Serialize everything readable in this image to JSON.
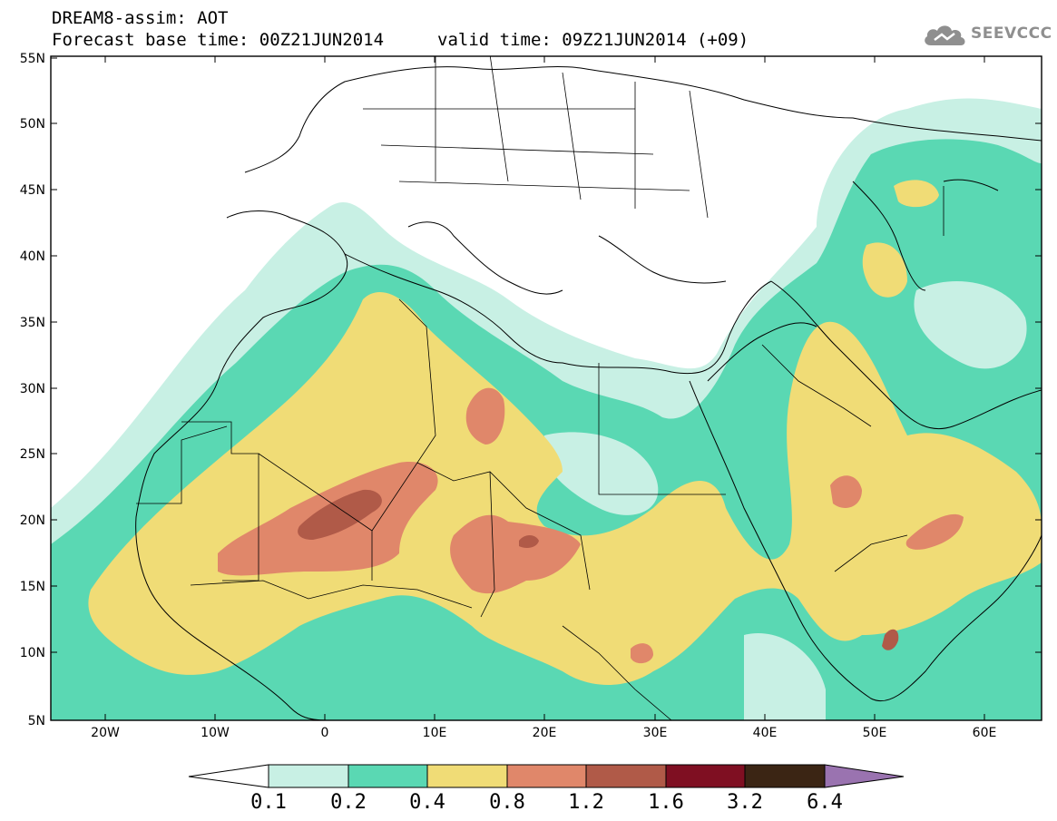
{
  "header": {
    "title_line1": "DREAM8-assim: AOT",
    "title_line2": "Forecast base time: 00Z21JUN2014",
    "valid_time": "valid time: 09Z21JUN2014 (+09)",
    "logo_text": "SEEVCCC"
  },
  "map": {
    "lat_labels": [
      "55N",
      "50N",
      "45N",
      "40N",
      "35N",
      "30N",
      "25N",
      "20N",
      "15N",
      "10N",
      "5N"
    ],
    "lon_labels": [
      "20W",
      "10W",
      "0",
      "10E",
      "20E",
      "30E",
      "40E",
      "50E",
      "60E"
    ],
    "extent": {
      "lon_min": -25,
      "lon_max": 65,
      "lat_min": 5,
      "lat_max": 55
    }
  },
  "colorbar": {
    "levels": [
      "0.1",
      "0.2",
      "0.4",
      "0.8",
      "1.2",
      "1.6",
      "3.2",
      "6.4"
    ],
    "colors": [
      "#ffffff",
      "#c8f0e4",
      "#5ad8b3",
      "#f0dc76",
      "#e0876a",
      "#b05a48",
      "#7f0f22",
      "#3b2514",
      "#9a73b0"
    ]
  }
}
